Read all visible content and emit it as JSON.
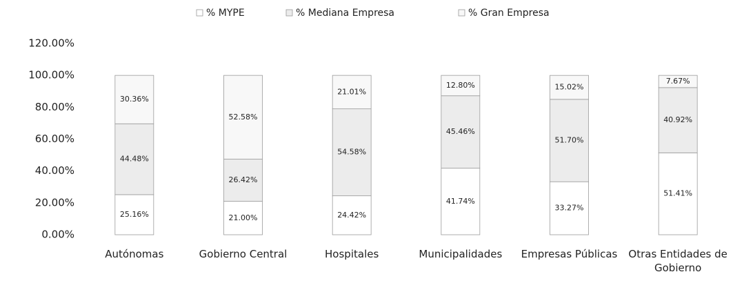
{
  "chart_data": {
    "type": "stacked_bar",
    "categories": [
      "Autónomas",
      "Gobierno Central",
      "Hospitales",
      "Municipalidades",
      "Empresas Públicas",
      "Otras Entidades de Gobierno"
    ],
    "series": [
      {
        "name": "% MYPE",
        "color": "#ffffff",
        "values": [
          25.16,
          21.0,
          24.42,
          41.74,
          33.27,
          51.41
        ],
        "value_labels": [
          "25.16%",
          "21.00%",
          "24.42%",
          "41.74%",
          "33.27%",
          "51.41%"
        ]
      },
      {
        "name": "% Mediana Empresa",
        "color": "#ececec",
        "values": [
          44.48,
          26.42,
          54.58,
          45.46,
          51.7,
          40.92
        ],
        "value_labels": [
          "44.48%",
          "26.42%",
          "54.58%",
          "45.46%",
          "51.70%",
          "40.92%"
        ]
      },
      {
        "name": "% Gran Empresa",
        "color": "#f8f8f8",
        "values": [
          30.36,
          52.58,
          21.01,
          12.8,
          15.02,
          7.67
        ],
        "value_labels": [
          "30.36%",
          "52.58%",
          "21.01%",
          "12.80%",
          "15.02%",
          "7.67%"
        ]
      }
    ],
    "ylim": [
      0,
      120
    ],
    "yticks": [
      {
        "value": 0,
        "label": "0.00%"
      },
      {
        "value": 20,
        "label": "20.00%"
      },
      {
        "value": 40,
        "label": "40.00%"
      },
      {
        "value": 60,
        "label": "60.00%"
      },
      {
        "value": 80,
        "label": "80.00%"
      },
      {
        "value": 100,
        "label": "100.00%"
      },
      {
        "value": 120,
        "label": "120.00%"
      }
    ],
    "legend": "top"
  }
}
